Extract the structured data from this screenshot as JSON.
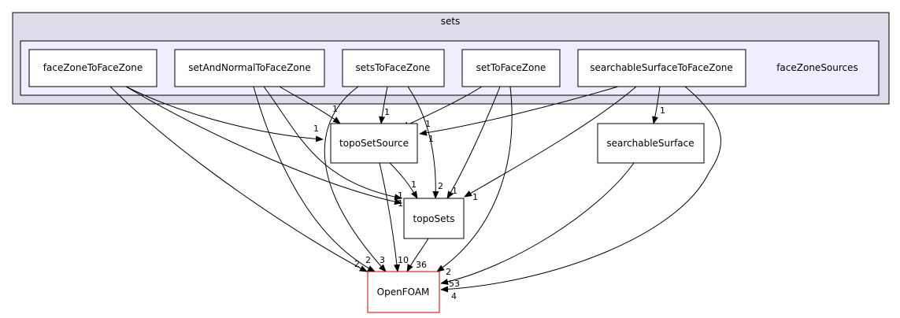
{
  "clusters": {
    "outer": "sets",
    "inner": "faceZoneSources"
  },
  "nodes": {
    "faceZoneToFaceZone": "faceZoneToFaceZone",
    "setAndNormalToFaceZone": "setAndNormalToFaceZone",
    "setsToFaceZone": "setsToFaceZone",
    "setToFaceZone": "setToFaceZone",
    "searchableSurfaceToFaceZone": "searchableSurfaceToFaceZone",
    "topoSetSource": "topoSetSource",
    "searchableSurface": "searchableSurface",
    "topoSets": "topoSets",
    "OpenFOAM": "OpenFOAM"
  },
  "edges": [
    {
      "from": "faceZoneToFaceZone",
      "to": "topoSetSource",
      "label": "1"
    },
    {
      "from": "faceZoneToFaceZone",
      "to": "topoSets",
      "label": "1"
    },
    {
      "from": "faceZoneToFaceZone",
      "to": "OpenFOAM",
      "label": "2"
    },
    {
      "from": "setAndNormalToFaceZone",
      "to": "topoSetSource",
      "label": "1"
    },
    {
      "from": "setAndNormalToFaceZone",
      "to": "topoSets",
      "label": "1"
    },
    {
      "from": "setAndNormalToFaceZone",
      "to": "OpenFOAM",
      "label": "2"
    },
    {
      "from": "setsToFaceZone",
      "to": "topoSetSource",
      "label": "1"
    },
    {
      "from": "setsToFaceZone",
      "to": "topoSets",
      "label": "2"
    },
    {
      "from": "setsToFaceZone",
      "to": "OpenFOAM",
      "label": "3"
    },
    {
      "from": "setToFaceZone",
      "to": "topoSetSource",
      "label": "1"
    },
    {
      "from": "setToFaceZone",
      "to": "topoSets",
      "label": "1"
    },
    {
      "from": "setToFaceZone",
      "to": "OpenFOAM",
      "label": "2"
    },
    {
      "from": "searchableSurfaceToFaceZone",
      "to": "topoSetSource",
      "label": "1"
    },
    {
      "from": "searchableSurfaceToFaceZone",
      "to": "searchableSurface",
      "label": "1"
    },
    {
      "from": "searchableSurfaceToFaceZone",
      "to": "topoSets",
      "label": "1"
    },
    {
      "from": "searchableSurfaceToFaceZone",
      "to": "OpenFOAM",
      "label": "4"
    },
    {
      "from": "topoSetSource",
      "to": "topoSets",
      "label": "1"
    },
    {
      "from": "topoSetSource",
      "to": "OpenFOAM",
      "label": "10"
    },
    {
      "from": "topoSets",
      "to": "OpenFOAM",
      "label": "36"
    },
    {
      "from": "searchableSurface",
      "to": "OpenFOAM",
      "label": "53"
    }
  ],
  "colors": {
    "outer_fill": "#dddde9",
    "inner_fill": "#eeeefe",
    "cluster_stroke": "#000000",
    "node_fill": "#ffffff",
    "openfoam_stroke": "#d00000"
  }
}
